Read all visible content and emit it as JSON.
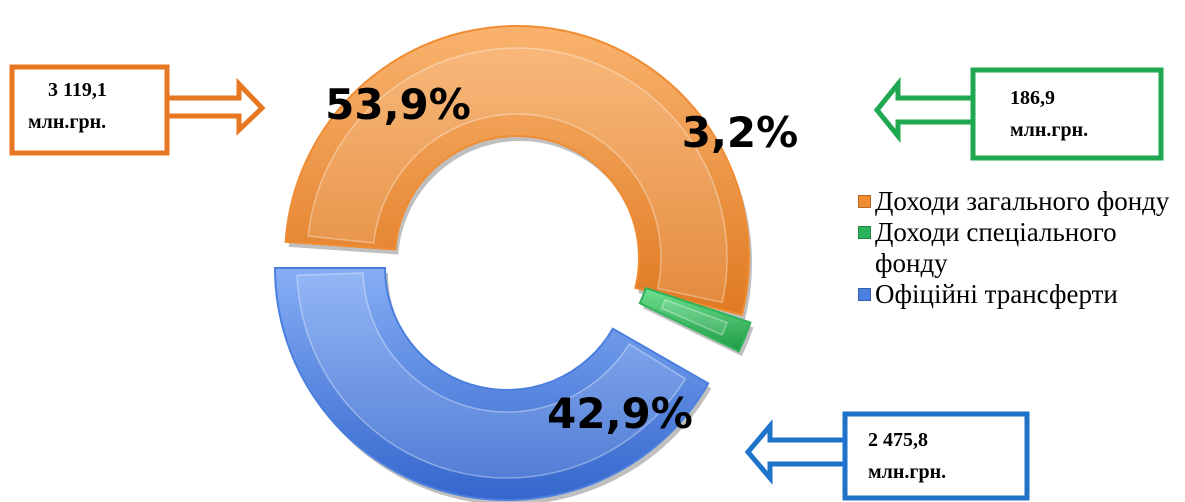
{
  "chart_data": {
    "type": "pie",
    "title": "",
    "categories": [
      "Доходи загального фонду",
      "Доходи спеціального фонду",
      "Офіційні трансферти"
    ],
    "values": [
      3119.1,
      186.9,
      2475.8
    ],
    "percent_labels": [
      "53,9%",
      "3,2%",
      "42,9%"
    ],
    "amount_labels": [
      {
        "value": "3 119,1",
        "unit": "млн.грн."
      },
      {
        "value": "186,9",
        "unit": "млн.грн."
      },
      {
        "value": "2 475,8",
        "unit": "млн.грн."
      }
    ],
    "colors": [
      "#F08C32",
      "#2DB35A",
      "#4A7FE0"
    ],
    "callout_colors": [
      "#E87722",
      "#1FA84F",
      "#1F73C9"
    ],
    "legend": "right",
    "donut": true
  }
}
